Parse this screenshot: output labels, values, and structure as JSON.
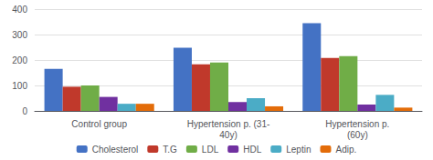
{
  "chart_data": {
    "type": "bar",
    "categories": [
      "Control group",
      "Hypertension p. (31-\n40y)",
      "Hypertension p.\n(60y)"
    ],
    "series": [
      {
        "name": "Cholesterol",
        "color": "#4472C4",
        "values": [
          165,
          248,
          345
        ]
      },
      {
        "name": "T.G",
        "color": "#C0392B",
        "values": [
          95,
          183,
          208
        ]
      },
      {
        "name": "LDL",
        "color": "#70AD47",
        "values": [
          100,
          190,
          215
        ]
      },
      {
        "name": "HDL",
        "color": "#7030A0",
        "values": [
          55,
          35,
          25
        ]
      },
      {
        "name": "Leptin",
        "color": "#4BACC6",
        "values": [
          28,
          50,
          63
        ]
      },
      {
        "name": "Adip.",
        "color": "#E36C09",
        "values": [
          28,
          18,
          13
        ]
      }
    ],
    "ylim": [
      0,
      400
    ],
    "yticks": [
      0,
      100,
      200,
      300,
      400
    ],
    "grid": true,
    "legend": "bottom"
  }
}
